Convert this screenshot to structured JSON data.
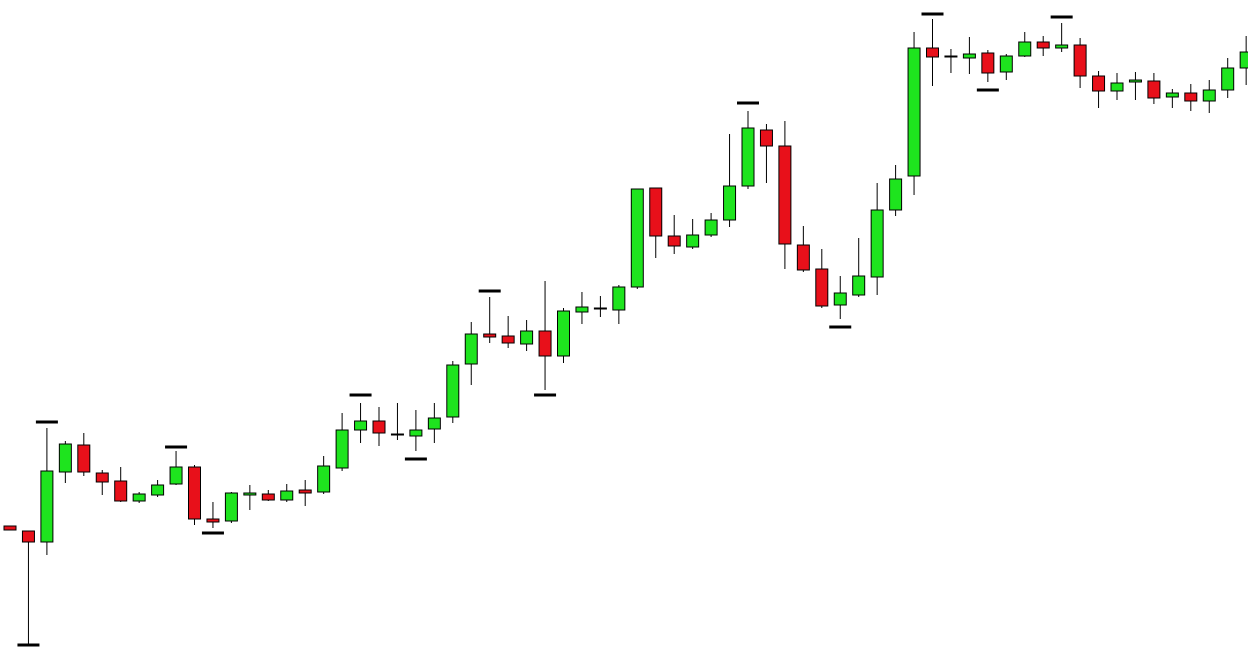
{
  "chart_data": {
    "type": "candlestick",
    "ylim": [
      0,
      648
    ],
    "up_color": "#1ee41e",
    "down_color": "#e8101a",
    "fractal_color": "#000000",
    "open": [
      122,
      117,
      106,
      176,
      203,
      175,
      167,
      147,
      153,
      164,
      181,
      129,
      127,
      153,
      154,
      148,
      158,
      156,
      180,
      218,
      227,
      213,
      212,
      219,
      231,
      284,
      314,
      312,
      304,
      317,
      292,
      336,
      339,
      338,
      361,
      460,
      412,
      401,
      413,
      428,
      462,
      518,
      502,
      403,
      379,
      343,
      353,
      371,
      438,
      472,
      600,
      591,
      590,
      595,
      576,
      592,
      606,
      600,
      603,
      572,
      557,
      566,
      567,
      551,
      555,
      547,
      558,
      580
    ],
    "high": [
      122,
      117,
      220,
      207,
      215,
      178,
      181,
      156,
      168,
      197,
      183,
      146,
      156,
      163,
      158,
      164,
      168,
      192,
      235,
      245,
      241,
      245,
      238,
      245,
      287,
      326,
      351,
      332,
      328,
      367,
      340,
      356,
      352,
      363,
      459,
      460,
      433,
      429,
      435,
      514,
      537,
      524,
      527,
      422,
      399,
      372,
      410,
      465,
      483,
      616,
      629,
      599,
      611,
      598,
      594,
      616,
      612,
      625,
      610,
      577,
      575,
      576,
      575,
      559,
      564,
      568,
      590,
      612
    ],
    "low": [
      118,
      3,
      93,
      165,
      172,
      153,
      146,
      145,
      151,
      163,
      123,
      120,
      125,
      138,
      147,
      146,
      142,
      154,
      177,
      205,
      202,
      208,
      197,
      205,
      225,
      263,
      305,
      300,
      297,
      258,
      285,
      324,
      331,
      324,
      359,
      390,
      394,
      399,
      411,
      421,
      459,
      465,
      379,
      376,
      340,
      329,
      351,
      353,
      432,
      453,
      562,
      575,
      574,
      566,
      568,
      591,
      592,
      596,
      560,
      540,
      548,
      548,
      544,
      540,
      537,
      535,
      550,
      563
    ],
    "close": [
      118,
      106,
      177,
      204,
      176,
      166,
      147,
      154,
      163,
      181,
      129,
      126,
      155,
      155,
      148,
      157,
      155,
      182,
      218,
      227,
      215,
      214,
      218,
      230,
      283,
      314,
      311,
      305,
      317,
      292,
      337,
      341,
      340,
      361,
      459,
      412,
      402,
      413,
      428,
      462,
      520,
      502,
      404,
      378,
      342,
      355,
      372,
      438,
      469,
      600,
      591,
      592,
      594,
      575,
      592,
      606,
      600,
      603,
      572,
      557,
      565,
      568,
      550,
      555,
      547,
      558,
      580,
      596
    ],
    "fractal_up": [
      null,
      null,
      226,
      null,
      null,
      null,
      null,
      null,
      null,
      201,
      null,
      null,
      null,
      null,
      null,
      null,
      null,
      null,
      null,
      253,
      null,
      null,
      null,
      null,
      null,
      null,
      357,
      null,
      null,
      null,
      null,
      null,
      null,
      null,
      null,
      null,
      null,
      null,
      null,
      null,
      545,
      null,
      null,
      null,
      null,
      null,
      null,
      null,
      null,
      null,
      634,
      null,
      null,
      null,
      null,
      null,
      null,
      631,
      null,
      null,
      null,
      null,
      null,
      null,
      null,
      null,
      null,
      null
    ],
    "fractal_down": [
      null,
      3,
      null,
      null,
      null,
      null,
      null,
      null,
      null,
      null,
      null,
      115,
      null,
      null,
      null,
      null,
      null,
      null,
      null,
      null,
      null,
      null,
      189,
      null,
      null,
      null,
      null,
      null,
      null,
      253,
      null,
      null,
      null,
      null,
      null,
      null,
      null,
      null,
      null,
      null,
      null,
      null,
      null,
      null,
      null,
      321,
      null,
      null,
      null,
      null,
      null,
      null,
      null,
      558,
      null,
      null,
      null,
      null,
      null,
      null,
      null,
      null,
      null,
      null,
      null,
      null,
      null,
      null
    ]
  }
}
